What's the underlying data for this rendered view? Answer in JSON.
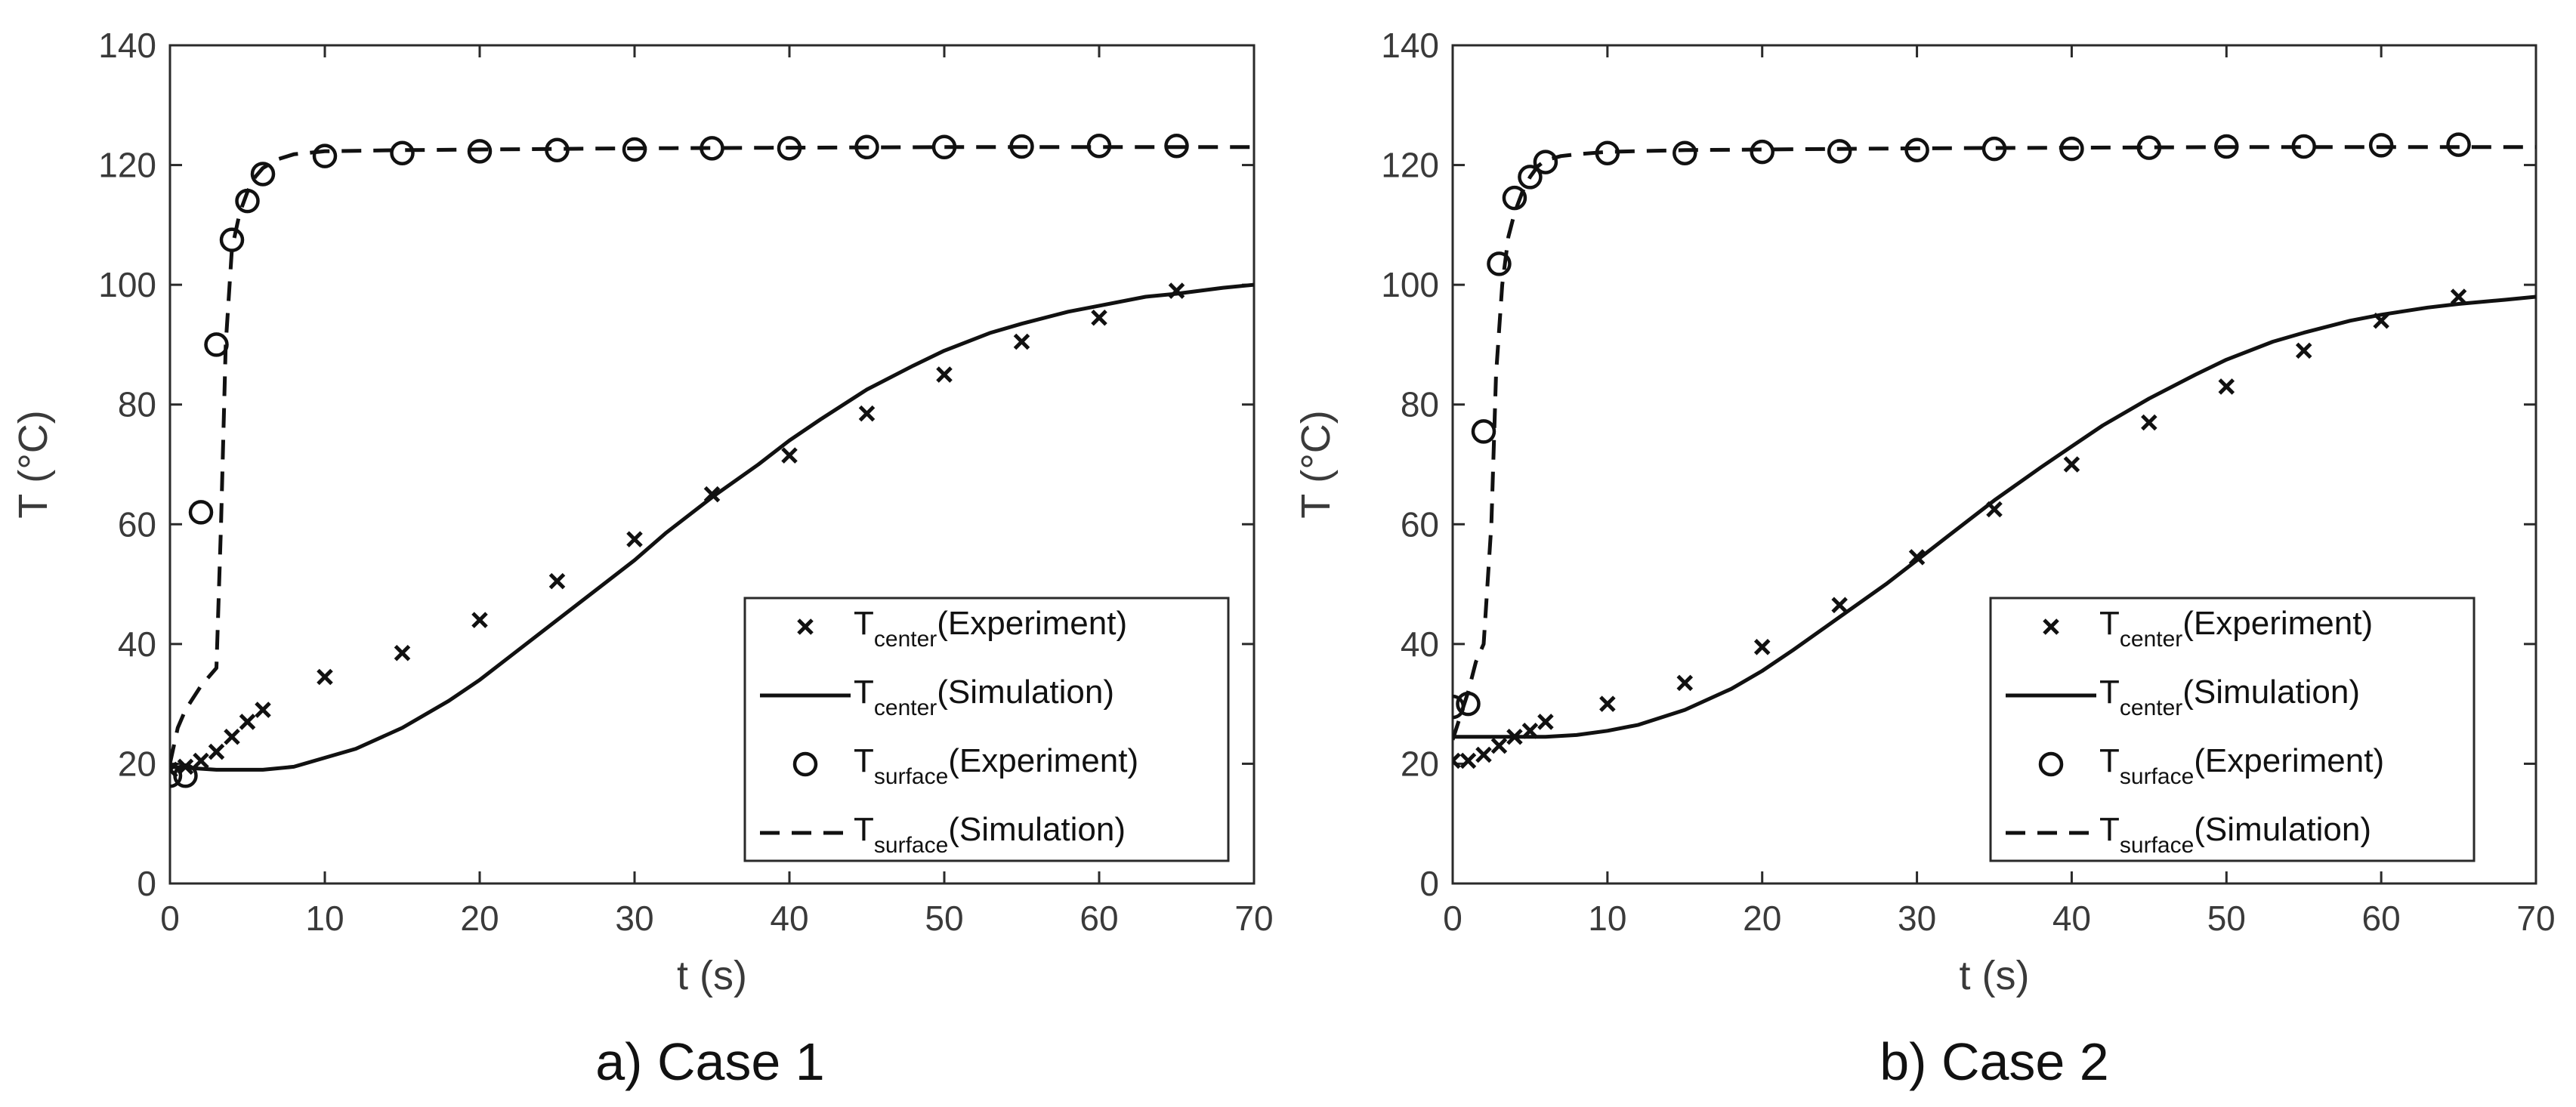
{
  "panels": [
    {
      "caption": "a) Case 1",
      "chart_data": {
        "type": "line",
        "xlabel": "t (s)",
        "ylabel": "T (°C)",
        "xlim": [
          0,
          70
        ],
        "ylim": [
          0,
          140
        ],
        "xticks": [
          "0",
          "10",
          "20",
          "30",
          "40",
          "50",
          "60",
          "70"
        ],
        "yticks": [
          "0",
          "20",
          "40",
          "60",
          "80",
          "100",
          "120",
          "140"
        ],
        "legend_position": "bottom-right",
        "series": [
          {
            "name_main": "T",
            "name_sub": "center",
            "name_suffix": "(Experiment)",
            "style": "x-marker",
            "x": [
              0,
              1,
              2,
              3,
              4,
              5,
              6,
              10,
              15,
              20,
              25,
              30,
              35,
              40,
              45,
              50,
              55,
              60,
              65
            ],
            "y": [
              19,
              19.5,
              20.5,
              22,
              24.5,
              27,
              29,
              34.5,
              38.5,
              44,
              50.5,
              57.5,
              65,
              71.5,
              78.5,
              85,
              90.5,
              94.5,
              99
            ]
          },
          {
            "name_main": "T",
            "name_sub": "center",
            "name_suffix": "(Simulation)",
            "style": "solid",
            "x": [
              0,
              3,
              6,
              8,
              10,
              12,
              15,
              18,
              20,
              22,
              25,
              28,
              30,
              32,
              35,
              38,
              40,
              42,
              45,
              48,
              50,
              53,
              55,
              58,
              60,
              63,
              65,
              68,
              70
            ],
            "y": [
              19.5,
              19,
              19,
              19.5,
              21,
              22.5,
              26,
              30.5,
              34,
              38,
              44,
              50,
              54,
              58.5,
              64.5,
              70,
              74,
              77.5,
              82.5,
              86.5,
              89,
              92,
              93.5,
              95.5,
              96.5,
              98,
              98.5,
              99.5,
              100
            ]
          },
          {
            "name_main": "T",
            "name_sub": "surface",
            "name_suffix": "(Experiment)",
            "style": "o-marker",
            "x": [
              0,
              1,
              2,
              3,
              4,
              5,
              6,
              10,
              15,
              20,
              25,
              30,
              35,
              40,
              45,
              50,
              55,
              60,
              65
            ],
            "y": [
              18,
              18,
              62,
              90,
              107.5,
              114,
              118.5,
              121.5,
              122,
              122.3,
              122.5,
              122.6,
              122.8,
              122.8,
              123,
              123,
              123.1,
              123.2,
              123.2
            ]
          },
          {
            "name_main": "T",
            "name_sub": "surface",
            "name_suffix": "(Simulation)",
            "style": "dashed",
            "x": [
              0,
              0.5,
              1,
              2,
              3,
              3.3,
              3.6,
              4,
              4.5,
              5,
              5.5,
              6,
              7,
              8,
              10,
              15,
              20,
              30,
              40,
              50,
              60,
              70
            ],
            "y": [
              20,
              26,
              29,
              33,
              36,
              60,
              90,
              106,
              112,
              115.5,
              118,
              119.5,
              121,
              121.8,
              122.3,
              122.5,
              122.6,
              122.8,
              122.9,
              123,
              123,
              123
            ]
          }
        ]
      }
    },
    {
      "caption": "b) Case 2",
      "chart_data": {
        "type": "line",
        "xlabel": "t (s)",
        "ylabel": "T (°C)",
        "xlim": [
          0,
          70
        ],
        "ylim": [
          0,
          140
        ],
        "xticks": [
          "0",
          "10",
          "20",
          "30",
          "40",
          "50",
          "60",
          "70"
        ],
        "yticks": [
          "0",
          "20",
          "40",
          "60",
          "80",
          "100",
          "120",
          "140"
        ],
        "legend_position": "bottom-right",
        "series": [
          {
            "name_main": "T",
            "name_sub": "center",
            "name_suffix": "(Experiment)",
            "style": "x-marker",
            "x": [
              0,
              1,
              2,
              3,
              4,
              5,
              6,
              10,
              15,
              20,
              25,
              30,
              35,
              40,
              45,
              50,
              55,
              60,
              65
            ],
            "y": [
              20.5,
              20.5,
              21.5,
              23,
              24.5,
              25.5,
              27,
              30,
              33.5,
              39.5,
              46.5,
              54.5,
              62.5,
              70,
              77,
              83,
              89,
              94,
              98
            ]
          },
          {
            "name_main": "T",
            "name_sub": "center",
            "name_suffix": "(Simulation)",
            "style": "solid",
            "x": [
              0,
              3,
              6,
              8,
              10,
              12,
              15,
              18,
              20,
              22,
              25,
              28,
              30,
              32,
              35,
              38,
              40,
              42,
              45,
              48,
              50,
              53,
              55,
              58,
              60,
              63,
              65,
              68,
              70
            ],
            "y": [
              24.5,
              24.5,
              24.5,
              24.8,
              25.5,
              26.5,
              29,
              32.5,
              35.5,
              39,
              44.5,
              50,
              54,
              58,
              64,
              69.5,
              73,
              76.5,
              81,
              85,
              87.5,
              90.5,
              92,
              94,
              95,
              96.2,
              96.8,
              97.5,
              98
            ]
          },
          {
            "name_main": "T",
            "name_sub": "surface",
            "name_suffix": "(Experiment)",
            "style": "o-marker",
            "x": [
              0,
              1,
              2,
              3,
              4,
              5,
              6,
              10,
              15,
              20,
              25,
              30,
              35,
              40,
              45,
              50,
              55,
              60,
              65
            ],
            "y": [
              29.5,
              30,
              75.5,
              103.5,
              114.5,
              118,
              120.5,
              122,
              122,
              122.2,
              122.3,
              122.5,
              122.7,
              122.7,
              122.9,
              123.1,
              123.1,
              123.3,
              123.4
            ]
          },
          {
            "name_main": "T",
            "name_sub": "surface",
            "name_suffix": "(Simulation)",
            "style": "dashed",
            "x": [
              0,
              0.5,
              1,
              1.5,
              2,
              2.5,
              2.8,
              3.2,
              3.6,
              4,
              4.5,
              5,
              5.5,
              6,
              7,
              8,
              10,
              15,
              20,
              30,
              40,
              50,
              60,
              70
            ],
            "y": [
              24,
              28,
              32,
              37,
              40,
              60,
              85,
              100,
              108,
              112,
              115.5,
              118,
              119.8,
              120.8,
              121.5,
              121.8,
              122.2,
              122.5,
              122.6,
              122.8,
              122.9,
              123,
              123,
              123
            ]
          }
        ]
      }
    }
  ]
}
